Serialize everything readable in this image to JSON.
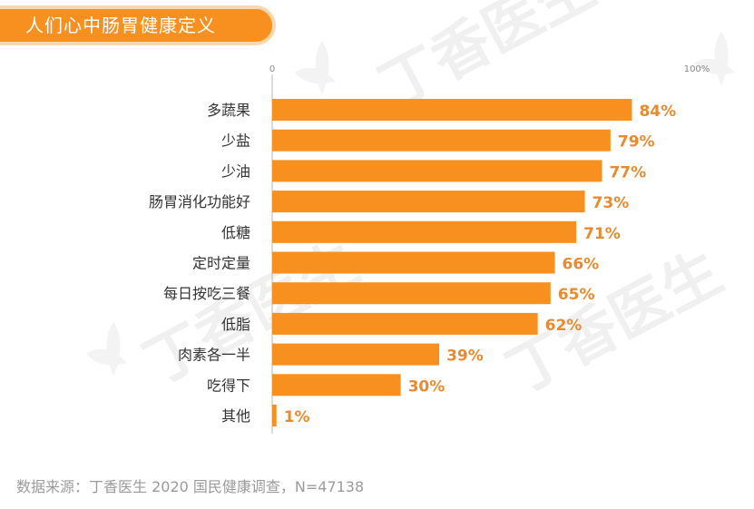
{
  "title": "人们心中肠胃健康定义",
  "watermark": "丁香医生",
  "source": "数据来源：丁香医生 2020 国民健康调查，N=47138",
  "colors": {
    "accent": "#f7901e",
    "label_color": "#ea8a2f",
    "category_color": "#333333",
    "axis_color": "#b5b5b5"
  },
  "chart_data": {
    "type": "bar",
    "orientation": "horizontal",
    "categories": [
      "多蔬果",
      "少盐",
      "少油",
      "肠胃消化功能好",
      "低糖",
      "定时定量",
      "每日按吃三餐",
      "低脂",
      "肉素各一半",
      "吃得下",
      "其他"
    ],
    "values": [
      84,
      79,
      77,
      73,
      71,
      66,
      65,
      62,
      39,
      30,
      1
    ],
    "value_labels": [
      "84%",
      "79%",
      "77%",
      "73%",
      "71%",
      "66%",
      "65%",
      "62%",
      "39%",
      "30%",
      "1%"
    ],
    "axis_min_label": "0",
    "axis_max_label": "100%",
    "xlim": [
      0,
      100
    ],
    "grid": false,
    "legend": "none"
  }
}
